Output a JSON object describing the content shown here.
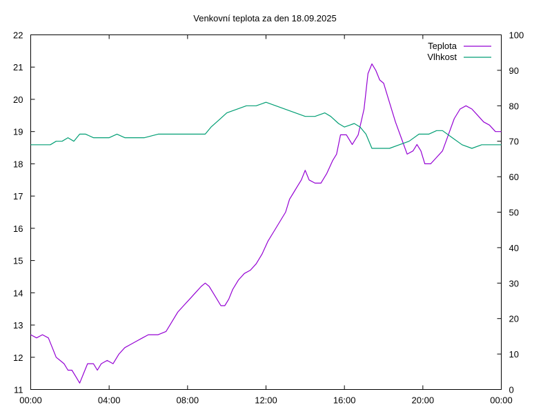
{
  "chart_data": {
    "type": "line",
    "title": "Venkovní teplota za den 18.09.2025",
    "x_ticks": [
      "00:00",
      "04:00",
      "08:00",
      "12:00",
      "16:00",
      "20:00",
      "00:00"
    ],
    "x_range_hours": [
      0,
      24
    ],
    "y_left": {
      "range": [
        11,
        22
      ],
      "ticks": [
        "11",
        "12",
        "13",
        "14",
        "15",
        "16",
        "17",
        "18",
        "19",
        "20",
        "21",
        "22"
      ]
    },
    "y_right": {
      "range": [
        0,
        100
      ],
      "ticks": [
        "0",
        "10",
        "20",
        "30",
        "40",
        "50",
        "60",
        "70",
        "80",
        "90",
        "100"
      ]
    },
    "grid": false,
    "legend_position": "top-right",
    "series": [
      {
        "name": "Teplota",
        "axis": "left",
        "color": "#9400d3",
        "points": [
          [
            0,
            12.7
          ],
          [
            0.3,
            12.6
          ],
          [
            0.6,
            12.7
          ],
          [
            0.9,
            12.6
          ],
          [
            1.1,
            12.3
          ],
          [
            1.3,
            12.0
          ],
          [
            1.5,
            11.9
          ],
          [
            1.7,
            11.8
          ],
          [
            1.9,
            11.6
          ],
          [
            2.1,
            11.6
          ],
          [
            2.3,
            11.4
          ],
          [
            2.5,
            11.2
          ],
          [
            2.7,
            11.5
          ],
          [
            2.9,
            11.8
          ],
          [
            3.2,
            11.8
          ],
          [
            3.4,
            11.6
          ],
          [
            3.6,
            11.8
          ],
          [
            3.9,
            11.9
          ],
          [
            4.2,
            11.8
          ],
          [
            4.5,
            12.1
          ],
          [
            4.8,
            12.3
          ],
          [
            5.1,
            12.4
          ],
          [
            5.4,
            12.5
          ],
          [
            5.7,
            12.6
          ],
          [
            6.0,
            12.7
          ],
          [
            6.5,
            12.7
          ],
          [
            6.9,
            12.8
          ],
          [
            7.2,
            13.1
          ],
          [
            7.5,
            13.4
          ],
          [
            7.8,
            13.6
          ],
          [
            8.1,
            13.8
          ],
          [
            8.4,
            14.0
          ],
          [
            8.7,
            14.2
          ],
          [
            8.9,
            14.3
          ],
          [
            9.1,
            14.2
          ],
          [
            9.3,
            14.0
          ],
          [
            9.5,
            13.8
          ],
          [
            9.7,
            13.6
          ],
          [
            9.9,
            13.6
          ],
          [
            10.1,
            13.8
          ],
          [
            10.3,
            14.1
          ],
          [
            10.6,
            14.4
          ],
          [
            10.9,
            14.6
          ],
          [
            11.2,
            14.7
          ],
          [
            11.5,
            14.9
          ],
          [
            11.8,
            15.2
          ],
          [
            12.1,
            15.6
          ],
          [
            12.4,
            15.9
          ],
          [
            12.7,
            16.2
          ],
          [
            13.0,
            16.5
          ],
          [
            13.2,
            16.9
          ],
          [
            13.4,
            17.1
          ],
          [
            13.6,
            17.3
          ],
          [
            13.8,
            17.5
          ],
          [
            14.0,
            17.8
          ],
          [
            14.2,
            17.5
          ],
          [
            14.5,
            17.4
          ],
          [
            14.8,
            17.4
          ],
          [
            15.1,
            17.7
          ],
          [
            15.4,
            18.1
          ],
          [
            15.6,
            18.3
          ],
          [
            15.8,
            18.9
          ],
          [
            16.1,
            18.9
          ],
          [
            16.4,
            18.6
          ],
          [
            16.7,
            18.9
          ],
          [
            17.0,
            19.7
          ],
          [
            17.2,
            20.8
          ],
          [
            17.4,
            21.1
          ],
          [
            17.6,
            20.9
          ],
          [
            17.8,
            20.6
          ],
          [
            18.0,
            20.5
          ],
          [
            18.3,
            19.9
          ],
          [
            18.6,
            19.3
          ],
          [
            18.9,
            18.8
          ],
          [
            19.2,
            18.3
          ],
          [
            19.5,
            18.4
          ],
          [
            19.7,
            18.6
          ],
          [
            19.9,
            18.4
          ],
          [
            20.1,
            18.0
          ],
          [
            20.4,
            18.0
          ],
          [
            20.7,
            18.2
          ],
          [
            21.0,
            18.4
          ],
          [
            21.3,
            18.9
          ],
          [
            21.6,
            19.4
          ],
          [
            21.9,
            19.7
          ],
          [
            22.2,
            19.8
          ],
          [
            22.5,
            19.7
          ],
          [
            22.8,
            19.5
          ],
          [
            23.1,
            19.3
          ],
          [
            23.4,
            19.2
          ],
          [
            23.7,
            19.0
          ],
          [
            24.0,
            19.0
          ]
        ]
      },
      {
        "name": "Vlhkost",
        "axis": "right",
        "color": "#009e73",
        "points": [
          [
            0,
            69
          ],
          [
            0.5,
            69
          ],
          [
            1.0,
            69
          ],
          [
            1.3,
            70
          ],
          [
            1.6,
            70
          ],
          [
            1.9,
            71
          ],
          [
            2.2,
            70
          ],
          [
            2.5,
            72
          ],
          [
            2.8,
            72
          ],
          [
            3.2,
            71
          ],
          [
            3.6,
            71
          ],
          [
            4.0,
            71
          ],
          [
            4.4,
            72
          ],
          [
            4.8,
            71
          ],
          [
            5.2,
            71
          ],
          [
            5.8,
            71
          ],
          [
            6.5,
            72
          ],
          [
            7.0,
            72
          ],
          [
            7.5,
            72
          ],
          [
            8.0,
            72
          ],
          [
            8.5,
            72
          ],
          [
            8.9,
            72
          ],
          [
            9.2,
            74
          ],
          [
            9.6,
            76
          ],
          [
            10.0,
            78
          ],
          [
            10.5,
            79
          ],
          [
            11.0,
            80
          ],
          [
            11.5,
            80
          ],
          [
            12.0,
            81
          ],
          [
            12.5,
            80
          ],
          [
            13.0,
            79
          ],
          [
            13.5,
            78
          ],
          [
            14.0,
            77
          ],
          [
            14.5,
            77
          ],
          [
            15.0,
            78
          ],
          [
            15.3,
            77
          ],
          [
            15.7,
            75
          ],
          [
            16.0,
            74
          ],
          [
            16.5,
            75
          ],
          [
            16.8,
            74
          ],
          [
            17.1,
            72
          ],
          [
            17.4,
            68
          ],
          [
            17.8,
            68
          ],
          [
            18.3,
            68
          ],
          [
            18.8,
            69
          ],
          [
            19.3,
            70
          ],
          [
            19.8,
            72
          ],
          [
            20.3,
            72
          ],
          [
            20.7,
            73
          ],
          [
            21.0,
            73
          ],
          [
            21.5,
            71
          ],
          [
            22.0,
            69
          ],
          [
            22.5,
            68
          ],
          [
            23.0,
            69
          ],
          [
            23.5,
            69
          ],
          [
            24.0,
            69
          ]
        ]
      }
    ]
  }
}
